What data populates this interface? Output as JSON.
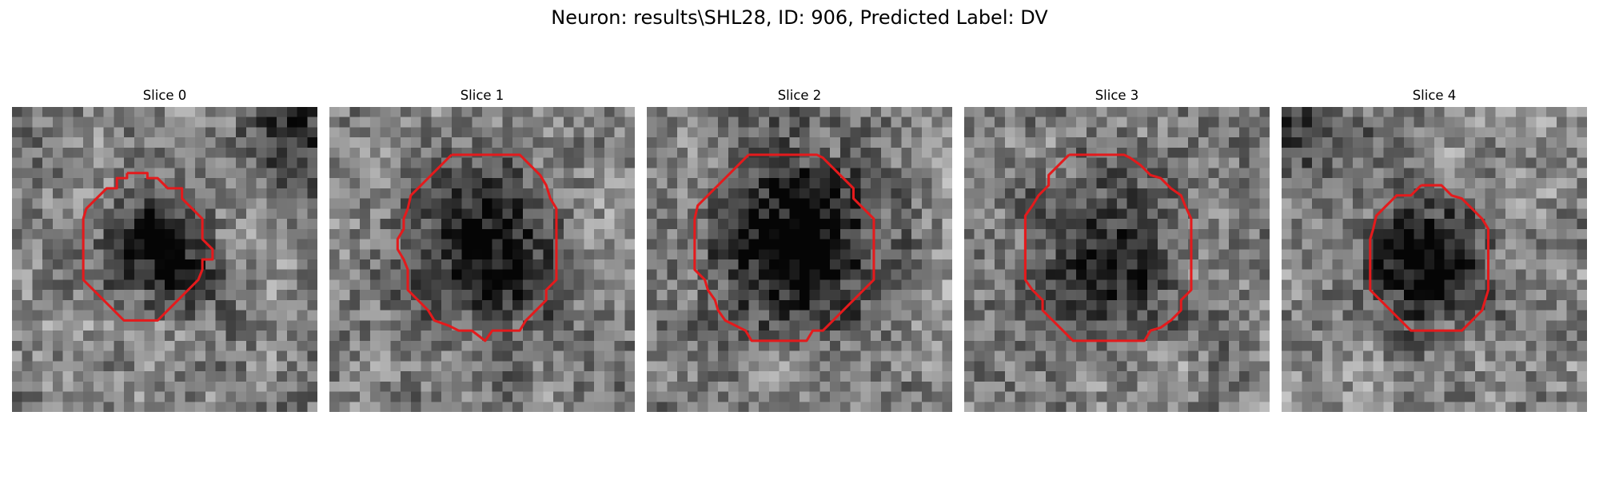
{
  "figure": {
    "title": "Neuron: results\\SHL28, ID: 906, Predicted Label: DV"
  },
  "slices": [
    {
      "title": "Slice 0",
      "seed": 11,
      "dark_blob": {
        "cx": 14.5,
        "cy": 14.5,
        "rx": 5.2,
        "ry": 5.3,
        "depth": 0.55
      },
      "dark_corner": "top-right",
      "contour": [
        [
          11.3,
          6.5
        ],
        [
          11.3,
          7.0
        ],
        [
          10.3,
          7.0
        ],
        [
          10.3,
          8.0
        ],
        [
          9.3,
          8.0
        ],
        [
          8.3,
          9.0
        ],
        [
          7.3,
          10.0
        ],
        [
          7.0,
          11.0
        ],
        [
          7.0,
          14.0
        ],
        [
          7.0,
          17.0
        ],
        [
          8.0,
          18.0
        ],
        [
          9.0,
          19.0
        ],
        [
          10.0,
          20.0
        ],
        [
          11.0,
          21.0
        ],
        [
          12.6,
          21.0
        ],
        [
          14.3,
          21.0
        ],
        [
          15.3,
          20.0
        ],
        [
          16.3,
          19.0
        ],
        [
          17.3,
          18.0
        ],
        [
          18.3,
          17.0
        ],
        [
          18.7,
          16.0
        ],
        [
          18.7,
          15.0
        ],
        [
          19.7,
          15.0
        ],
        [
          19.7,
          14.0
        ],
        [
          18.7,
          13.0
        ],
        [
          18.7,
          11.0
        ],
        [
          17.7,
          10.0
        ],
        [
          16.7,
          9.0
        ],
        [
          16.7,
          8.0
        ],
        [
          15.3,
          8.0
        ],
        [
          14.3,
          7.0
        ],
        [
          13.3,
          7.0
        ],
        [
          13.3,
          6.5
        ],
        [
          11.3,
          6.5
        ]
      ],
      "contour_color": "#e41a1c"
    },
    {
      "title": "Slice 1",
      "seed": 23,
      "dark_blob": {
        "cx": 15.0,
        "cy": 14.5,
        "rx": 7.2,
        "ry": 7.6,
        "depth": 0.5
      },
      "dark_corner": "none",
      "contour": [
        [
          12.0,
          4.7
        ],
        [
          11.0,
          5.7
        ],
        [
          10.0,
          6.7
        ],
        [
          9.0,
          7.7
        ],
        [
          8.0,
          8.7
        ],
        [
          7.7,
          10.0
        ],
        [
          7.3,
          11.0
        ],
        [
          7.3,
          12.0
        ],
        [
          6.7,
          13.0
        ],
        [
          6.7,
          14.0
        ],
        [
          7.3,
          15.0
        ],
        [
          7.7,
          16.0
        ],
        [
          7.7,
          18.0
        ],
        [
          8.7,
          19.0
        ],
        [
          9.7,
          20.0
        ],
        [
          10.3,
          21.0
        ],
        [
          11.7,
          21.5
        ],
        [
          12.7,
          22.0
        ],
        [
          14.0,
          22.0
        ],
        [
          15.3,
          23.0
        ],
        [
          16.0,
          22.0
        ],
        [
          17.3,
          22.0
        ],
        [
          18.7,
          22.0
        ],
        [
          19.3,
          21.0
        ],
        [
          20.3,
          20.0
        ],
        [
          21.3,
          19.0
        ],
        [
          21.3,
          18.0
        ],
        [
          22.3,
          17.0
        ],
        [
          22.3,
          15.0
        ],
        [
          22.3,
          13.0
        ],
        [
          22.3,
          10.0
        ],
        [
          21.7,
          9.0
        ],
        [
          21.3,
          7.7
        ],
        [
          20.7,
          6.7
        ],
        [
          19.7,
          5.7
        ],
        [
          18.7,
          4.7
        ],
        [
          16.0,
          4.7
        ],
        [
          12.0,
          4.7
        ]
      ],
      "contour_color": "#e41a1c"
    },
    {
      "title": "Slice 2",
      "seed": 37,
      "dark_blob": {
        "cx": 14.5,
        "cy": 13.5,
        "rx": 7.8,
        "ry": 8.0,
        "depth": 0.65
      },
      "dark_corner": "none",
      "contour": [
        [
          10.0,
          4.7
        ],
        [
          9.0,
          5.7
        ],
        [
          8.0,
          6.7
        ],
        [
          7.0,
          7.7
        ],
        [
          6.0,
          8.7
        ],
        [
          5.0,
          9.7
        ],
        [
          4.7,
          11.0
        ],
        [
          4.7,
          14.0
        ],
        [
          4.7,
          16.0
        ],
        [
          5.7,
          17.0
        ],
        [
          6.0,
          18.0
        ],
        [
          6.7,
          19.0
        ],
        [
          7.0,
          20.0
        ],
        [
          7.7,
          21.0
        ],
        [
          8.7,
          21.5
        ],
        [
          9.7,
          22.0
        ],
        [
          10.3,
          23.0
        ],
        [
          13.0,
          23.0
        ],
        [
          15.7,
          23.0
        ],
        [
          16.3,
          22.0
        ],
        [
          17.3,
          22.0
        ],
        [
          18.3,
          21.0
        ],
        [
          19.3,
          20.0
        ],
        [
          20.3,
          19.0
        ],
        [
          21.3,
          18.0
        ],
        [
          22.3,
          17.0
        ],
        [
          22.3,
          14.0
        ],
        [
          22.3,
          11.0
        ],
        [
          21.3,
          10.0
        ],
        [
          20.3,
          9.0
        ],
        [
          20.3,
          8.0
        ],
        [
          19.3,
          7.0
        ],
        [
          18.3,
          6.0
        ],
        [
          17.3,
          5.0
        ],
        [
          16.7,
          4.7
        ],
        [
          13.0,
          4.7
        ],
        [
          10.0,
          4.7
        ]
      ],
      "contour_color": "#e41a1c"
    },
    {
      "title": "Slice 3",
      "seed": 53,
      "dark_blob": {
        "cx": 14.0,
        "cy": 14.5,
        "rx": 7.3,
        "ry": 8.0,
        "depth": 0.38
      },
      "dark_corner": "none",
      "contour": [
        [
          10.3,
          4.7
        ],
        [
          9.3,
          5.7
        ],
        [
          8.3,
          6.7
        ],
        [
          8.3,
          7.7
        ],
        [
          7.3,
          8.7
        ],
        [
          6.7,
          9.7
        ],
        [
          6.0,
          10.7
        ],
        [
          6.0,
          13.0
        ],
        [
          6.0,
          17.0
        ],
        [
          6.7,
          18.0
        ],
        [
          7.7,
          19.0
        ],
        [
          7.7,
          20.0
        ],
        [
          8.7,
          21.0
        ],
        [
          9.7,
          22.0
        ],
        [
          10.7,
          23.0
        ],
        [
          14.0,
          23.0
        ],
        [
          17.7,
          23.0
        ],
        [
          18.3,
          22.0
        ],
        [
          19.3,
          21.7
        ],
        [
          20.3,
          21.0
        ],
        [
          21.3,
          20.0
        ],
        [
          21.3,
          19.0
        ],
        [
          22.3,
          18.0
        ],
        [
          22.3,
          15.0
        ],
        [
          22.3,
          11.0
        ],
        [
          21.7,
          9.7
        ],
        [
          21.3,
          8.7
        ],
        [
          20.3,
          8.0
        ],
        [
          19.3,
          7.0
        ],
        [
          18.3,
          6.7
        ],
        [
          17.3,
          5.7
        ],
        [
          16.3,
          5.0
        ],
        [
          15.7,
          4.7
        ],
        [
          13.0,
          4.7
        ],
        [
          10.3,
          4.7
        ]
      ],
      "contour_color": "#e41a1c"
    },
    {
      "title": "Slice 4",
      "seed": 71,
      "dark_blob": {
        "cx": 14.8,
        "cy": 15.0,
        "rx": 5.8,
        "ry": 6.2,
        "depth": 0.58
      },
      "dark_corner": "top-left",
      "contour": [
        [
          13.7,
          7.7
        ],
        [
          12.7,
          8.7
        ],
        [
          11.3,
          8.7
        ],
        [
          10.3,
          9.7
        ],
        [
          9.3,
          10.7
        ],
        [
          9.0,
          12.0
        ],
        [
          8.7,
          13.0
        ],
        [
          8.7,
          15.0
        ],
        [
          8.7,
          18.0
        ],
        [
          9.7,
          19.0
        ],
        [
          10.7,
          20.0
        ],
        [
          11.7,
          21.0
        ],
        [
          12.7,
          22.0
        ],
        [
          15.0,
          22.0
        ],
        [
          17.7,
          22.0
        ],
        [
          18.7,
          21.0
        ],
        [
          19.7,
          20.0
        ],
        [
          20.0,
          19.0
        ],
        [
          20.3,
          18.0
        ],
        [
          20.3,
          16.0
        ],
        [
          20.3,
          12.0
        ],
        [
          19.7,
          11.0
        ],
        [
          18.7,
          10.0
        ],
        [
          17.7,
          9.0
        ],
        [
          16.7,
          8.7
        ],
        [
          15.7,
          7.7
        ],
        [
          13.7,
          7.7
        ]
      ],
      "contour_color": "#e41a1c"
    }
  ]
}
